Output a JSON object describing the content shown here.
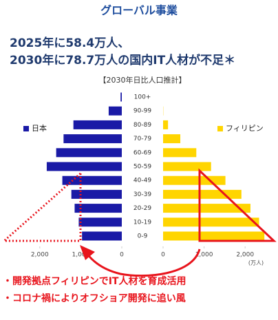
{
  "chart_data": {
    "type": "pyramid",
    "title": "グローバル事業",
    "headline": [
      "2025年に58.4万人、",
      "2030年に78.7万人の国内IT人材が不足＊"
    ],
    "subtitle": "【2030年日比人口推計】",
    "categories": [
      "100+",
      "90-99",
      "80-89",
      "70-79",
      "60-69",
      "50-59",
      "40-49",
      "30-39",
      "20-29",
      "10-19",
      "0-9"
    ],
    "series": [
      {
        "name": "日本",
        "color": "#1a1aa6",
        "side": "left",
        "values": [
          30,
          320,
          1180,
          1420,
          1600,
          1830,
          1450,
          1230,
          1150,
          1050,
          970
        ]
      },
      {
        "name": "フィリピン",
        "color": "#ffd500",
        "side": "right",
        "values": [
          0,
          5,
          120,
          420,
          810,
          1170,
          1520,
          1910,
          2130,
          2340,
          2470
        ]
      }
    ],
    "xlim": [
      0,
      2500
    ],
    "xticks": [
      0,
      {
        "value": 1000,
        "label": "1,000"
      },
      {
        "value": 2000,
        "label": "2,000"
      }
    ],
    "unit_label": "(万人)",
    "notes": [
      "・開発拠点フィリピンでIT人材を育成活用",
      "・コロナ禍によりオフショア開発に追い風"
    ]
  }
}
